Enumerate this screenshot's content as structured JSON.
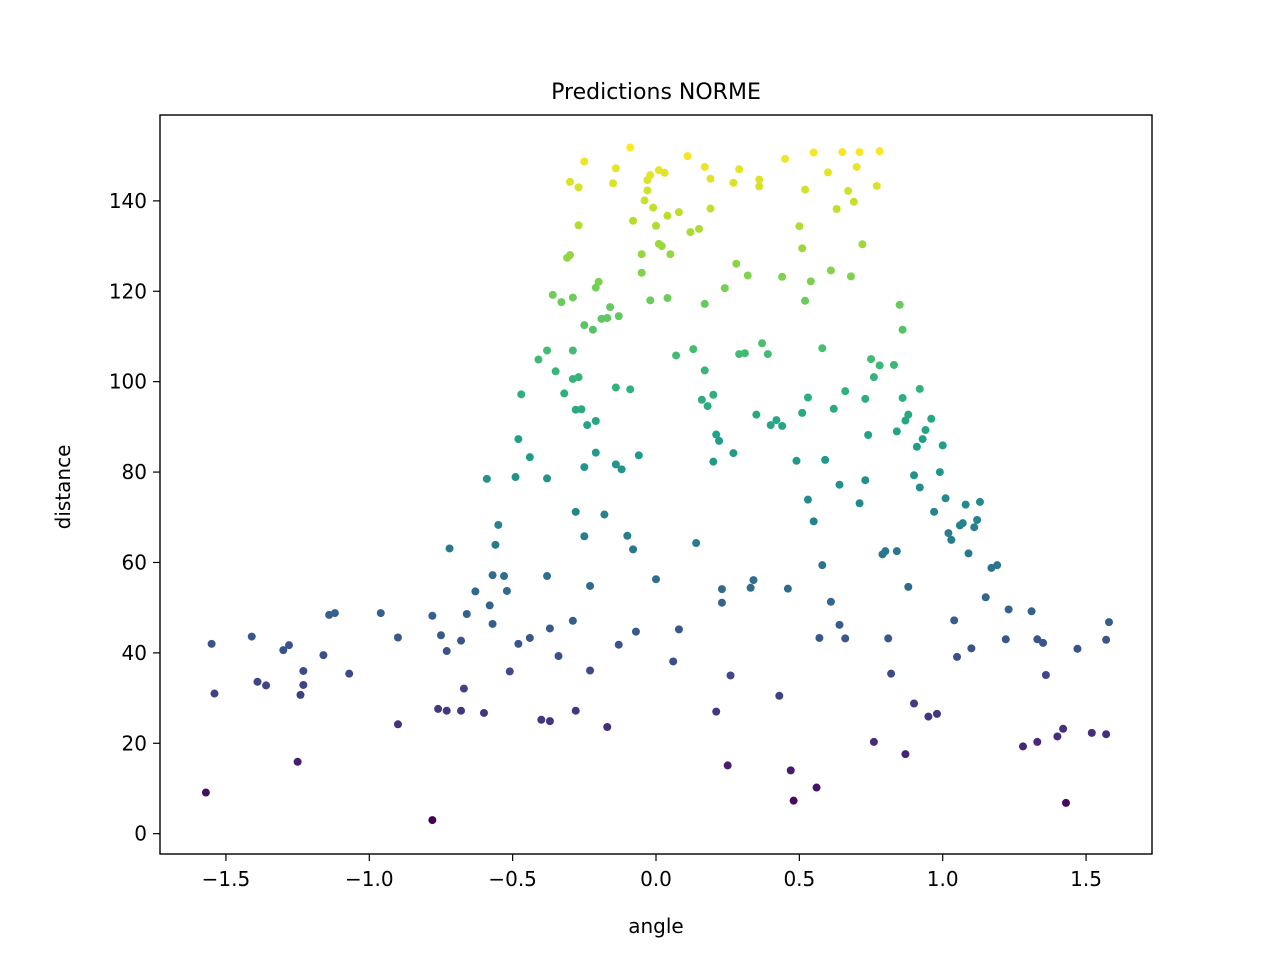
{
  "chart_data": {
    "type": "scatter",
    "title": "Predictions NORME",
    "xlabel": "angle",
    "ylabel": "distance",
    "xlim": [
      -1.73,
      1.73
    ],
    "ylim": [
      -4.5,
      159
    ],
    "xticks": [
      -1.5,
      -1.0,
      -0.5,
      0.0,
      0.5,
      1.0,
      1.5
    ],
    "xtick_labels": [
      "−1.5",
      "−1.0",
      "−0.5",
      "0.0",
      "0.5",
      "1.0",
      "1.5"
    ],
    "yticks": [
      0,
      20,
      40,
      60,
      80,
      100,
      120,
      140
    ],
    "ytick_labels": [
      "0",
      "20",
      "40",
      "60",
      "80",
      "100",
      "120",
      "140"
    ],
    "colormap": "viridis",
    "color_by": "y",
    "color_range": [
      3,
      152
    ],
    "grid": false,
    "legend": "none",
    "points": [
      [
        -1.57,
        9.1
      ],
      [
        -1.55,
        42.0
      ],
      [
        -1.54,
        31.0
      ],
      [
        -1.41,
        43.6
      ],
      [
        -1.39,
        33.6
      ],
      [
        -1.36,
        32.8
      ],
      [
        -1.3,
        40.6
      ],
      [
        -1.28,
        41.7
      ],
      [
        -1.25,
        15.9
      ],
      [
        -1.24,
        30.7
      ],
      [
        -1.23,
        36.0
      ],
      [
        -1.23,
        32.9
      ],
      [
        -1.16,
        39.5
      ],
      [
        -1.14,
        48.4
      ],
      [
        -1.12,
        48.8
      ],
      [
        -1.07,
        35.4
      ],
      [
        -0.96,
        48.8
      ],
      [
        -0.9,
        24.2
      ],
      [
        -0.9,
        43.4
      ],
      [
        -0.78,
        48.2
      ],
      [
        -0.78,
        3.0
      ],
      [
        -0.76,
        27.6
      ],
      [
        -0.75,
        43.9
      ],
      [
        -0.73,
        27.2
      ],
      [
        -0.73,
        40.4
      ],
      [
        -0.72,
        63.1
      ],
      [
        -0.68,
        42.7
      ],
      [
        -0.68,
        27.2
      ],
      [
        -0.67,
        32.1
      ],
      [
        -0.66,
        48.6
      ],
      [
        -0.63,
        53.6
      ],
      [
        -0.6,
        26.7
      ],
      [
        -0.59,
        78.5
      ],
      [
        -0.58,
        50.5
      ],
      [
        -0.57,
        46.4
      ],
      [
        -0.57,
        57.2
      ],
      [
        -0.56,
        63.9
      ],
      [
        -0.55,
        68.3
      ],
      [
        -0.53,
        57.0
      ],
      [
        -0.52,
        53.7
      ],
      [
        -0.51,
        35.9
      ],
      [
        -0.49,
        78.9
      ],
      [
        -0.48,
        87.3
      ],
      [
        -0.47,
        97.2
      ],
      [
        -0.48,
        42.0
      ],
      [
        -0.44,
        83.3
      ],
      [
        -0.44,
        43.3
      ],
      [
        -0.41,
        104.9
      ],
      [
        -0.4,
        25.2
      ],
      [
        -0.38,
        106.9
      ],
      [
        -0.38,
        78.6
      ],
      [
        -0.38,
        57.0
      ],
      [
        -0.37,
        24.9
      ],
      [
        -0.37,
        45.4
      ],
      [
        -0.36,
        119.2
      ],
      [
        -0.35,
        102.3
      ],
      [
        -0.34,
        39.3
      ],
      [
        -0.33,
        117.6
      ],
      [
        -0.32,
        97.4
      ],
      [
        -0.31,
        127.4
      ],
      [
        -0.3,
        144.2
      ],
      [
        -0.3,
        128.0
      ],
      [
        -0.29,
        118.6
      ],
      [
        -0.29,
        47.1
      ],
      [
        -0.29,
        106.9
      ],
      [
        -0.29,
        100.6
      ],
      [
        -0.28,
        71.2
      ],
      [
        -0.28,
        27.2
      ],
      [
        -0.28,
        93.8
      ],
      [
        -0.27,
        134.6
      ],
      [
        -0.27,
        143.0
      ],
      [
        -0.27,
        101.0
      ],
      [
        -0.26,
        93.9
      ],
      [
        -0.25,
        148.7
      ],
      [
        -0.25,
        81.1
      ],
      [
        -0.25,
        65.8
      ],
      [
        -0.25,
        112.5
      ],
      [
        -0.24,
        90.4
      ],
      [
        -0.23,
        54.8
      ],
      [
        -0.23,
        36.1
      ],
      [
        -0.22,
        111.5
      ],
      [
        -0.21,
        120.8
      ],
      [
        -0.21,
        84.3
      ],
      [
        -0.21,
        91.3
      ],
      [
        -0.2,
        122.1
      ],
      [
        -0.19,
        113.9
      ],
      [
        -0.18,
        70.6
      ],
      [
        -0.17,
        23.6
      ],
      [
        -0.17,
        114.1
      ],
      [
        -0.16,
        116.5
      ],
      [
        -0.15,
        143.9
      ],
      [
        -0.14,
        147.2
      ],
      [
        -0.14,
        98.7
      ],
      [
        -0.14,
        81.7
      ],
      [
        -0.13,
        114.5
      ],
      [
        -0.13,
        41.8
      ],
      [
        -0.12,
        80.6
      ],
      [
        -0.1,
        65.9
      ],
      [
        -0.09,
        151.8
      ],
      [
        -0.09,
        98.3
      ],
      [
        -0.08,
        135.6
      ],
      [
        -0.08,
        62.9
      ],
      [
        -0.07,
        44.7
      ],
      [
        -0.06,
        83.7
      ],
      [
        -0.05,
        124.1
      ],
      [
        -0.05,
        128.2
      ],
      [
        -0.04,
        140.1
      ],
      [
        -0.03,
        142.3
      ],
      [
        -0.03,
        144.6
      ],
      [
        -0.02,
        145.7
      ],
      [
        -0.02,
        118.0
      ],
      [
        -0.01,
        138.5
      ],
      [
        0.0,
        56.3
      ],
      [
        0.0,
        134.5
      ],
      [
        0.01,
        146.8
      ],
      [
        0.01,
        130.5
      ],
      [
        0.02,
        130.0
      ],
      [
        0.03,
        146.2
      ],
      [
        0.04,
        136.7
      ],
      [
        0.04,
        118.5
      ],
      [
        0.05,
        128.2
      ],
      [
        0.06,
        38.1
      ],
      [
        0.07,
        105.8
      ],
      [
        0.08,
        137.5
      ],
      [
        0.08,
        45.2
      ],
      [
        0.11,
        149.9
      ],
      [
        0.12,
        133.1
      ],
      [
        0.13,
        107.2
      ],
      [
        0.14,
        64.3
      ],
      [
        0.15,
        133.8
      ],
      [
        0.16,
        96.0
      ],
      [
        0.17,
        102.5
      ],
      [
        0.17,
        147.5
      ],
      [
        0.17,
        117.2
      ],
      [
        0.18,
        94.6
      ],
      [
        0.19,
        144.9
      ],
      [
        0.19,
        138.3
      ],
      [
        0.2,
        97.1
      ],
      [
        0.2,
        82.3
      ],
      [
        0.21,
        88.3
      ],
      [
        0.21,
        27.0
      ],
      [
        0.22,
        86.9
      ],
      [
        0.23,
        51.1
      ],
      [
        0.23,
        54.1
      ],
      [
        0.24,
        120.7
      ],
      [
        0.25,
        15.1
      ],
      [
        0.26,
        35.0
      ],
      [
        0.27,
        144.0
      ],
      [
        0.27,
        84.2
      ],
      [
        0.28,
        126.1
      ],
      [
        0.29,
        147.0
      ],
      [
        0.29,
        106.1
      ],
      [
        0.31,
        106.3
      ],
      [
        0.32,
        123.5
      ],
      [
        0.33,
        54.4
      ],
      [
        0.34,
        56.1
      ],
      [
        0.35,
        92.7
      ],
      [
        0.36,
        143.2
      ],
      [
        0.36,
        144.7
      ],
      [
        0.37,
        108.5
      ],
      [
        0.39,
        106.1
      ],
      [
        0.4,
        90.4
      ],
      [
        0.42,
        91.5
      ],
      [
        0.43,
        30.5
      ],
      [
        0.44,
        123.2
      ],
      [
        0.44,
        90.2
      ],
      [
        0.45,
        149.3
      ],
      [
        0.46,
        54.2
      ],
      [
        0.47,
        14.0
      ],
      [
        0.48,
        7.3
      ],
      [
        0.49,
        82.5
      ],
      [
        0.5,
        134.4
      ],
      [
        0.51,
        129.5
      ],
      [
        0.51,
        93.1
      ],
      [
        0.52,
        142.5
      ],
      [
        0.52,
        117.9
      ],
      [
        0.53,
        96.5
      ],
      [
        0.53,
        73.9
      ],
      [
        0.54,
        122.2
      ],
      [
        0.55,
        150.7
      ],
      [
        0.55,
        69.1
      ],
      [
        0.56,
        10.2
      ],
      [
        0.57,
        43.3
      ],
      [
        0.58,
        107.4
      ],
      [
        0.58,
        59.4
      ],
      [
        0.59,
        82.7
      ],
      [
        0.6,
        146.3
      ],
      [
        0.61,
        124.6
      ],
      [
        0.61,
        51.3
      ],
      [
        0.62,
        94.0
      ],
      [
        0.63,
        138.2
      ],
      [
        0.64,
        77.2
      ],
      [
        0.64,
        46.2
      ],
      [
        0.65,
        150.8
      ],
      [
        0.66,
        97.9
      ],
      [
        0.66,
        43.2
      ],
      [
        0.67,
        142.2
      ],
      [
        0.68,
        123.3
      ],
      [
        0.69,
        139.8
      ],
      [
        0.7,
        147.5
      ],
      [
        0.71,
        73.1
      ],
      [
        0.71,
        150.8
      ],
      [
        0.72,
        130.4
      ],
      [
        0.73,
        78.2
      ],
      [
        0.73,
        96.2
      ],
      [
        0.74,
        88.2
      ],
      [
        0.75,
        105.0
      ],
      [
        0.76,
        20.3
      ],
      [
        0.76,
        101.0
      ],
      [
        0.77,
        143.3
      ],
      [
        0.78,
        151.0
      ],
      [
        0.78,
        103.6
      ],
      [
        0.79,
        61.8
      ],
      [
        0.8,
        62.5
      ],
      [
        0.81,
        43.2
      ],
      [
        0.82,
        35.4
      ],
      [
        0.83,
        103.7
      ],
      [
        0.84,
        89.0
      ],
      [
        0.84,
        62.5
      ],
      [
        0.85,
        117.0
      ],
      [
        0.86,
        96.4
      ],
      [
        0.86,
        111.5
      ],
      [
        0.87,
        17.6
      ],
      [
        0.87,
        91.4
      ],
      [
        0.88,
        92.7
      ],
      [
        0.88,
        54.6
      ],
      [
        0.9,
        28.8
      ],
      [
        0.9,
        79.3
      ],
      [
        0.91,
        85.6
      ],
      [
        0.92,
        98.4
      ],
      [
        0.92,
        76.6
      ],
      [
        0.93,
        87.3
      ],
      [
        0.94,
        89.3
      ],
      [
        0.95,
        25.9
      ],
      [
        0.96,
        91.8
      ],
      [
        0.97,
        71.2
      ],
      [
        0.98,
        26.5
      ],
      [
        0.99,
        80.0
      ],
      [
        1.0,
        85.9
      ],
      [
        1.01,
        74.2
      ],
      [
        1.02,
        66.5
      ],
      [
        1.03,
        65.0
      ],
      [
        1.04,
        47.2
      ],
      [
        1.05,
        39.1
      ],
      [
        1.06,
        68.2
      ],
      [
        1.07,
        68.7
      ],
      [
        1.08,
        72.8
      ],
      [
        1.09,
        62.0
      ],
      [
        1.1,
        41.0
      ],
      [
        1.11,
        67.8
      ],
      [
        1.12,
        69.4
      ],
      [
        1.13,
        73.4
      ],
      [
        1.15,
        52.3
      ],
      [
        1.17,
        58.8
      ],
      [
        1.19,
        59.4
      ],
      [
        1.22,
        43.0
      ],
      [
        1.23,
        49.6
      ],
      [
        1.28,
        19.3
      ],
      [
        1.31,
        49.2
      ],
      [
        1.33,
        20.3
      ],
      [
        1.33,
        43.0
      ],
      [
        1.35,
        42.2
      ],
      [
        1.36,
        35.1
      ],
      [
        1.4,
        21.5
      ],
      [
        1.42,
        23.2
      ],
      [
        1.43,
        6.8
      ],
      [
        1.47,
        40.9
      ],
      [
        1.58,
        46.8
      ],
      [
        1.52,
        22.3
      ],
      [
        1.57,
        22.0
      ],
      [
        1.57,
        42.9
      ]
    ]
  }
}
